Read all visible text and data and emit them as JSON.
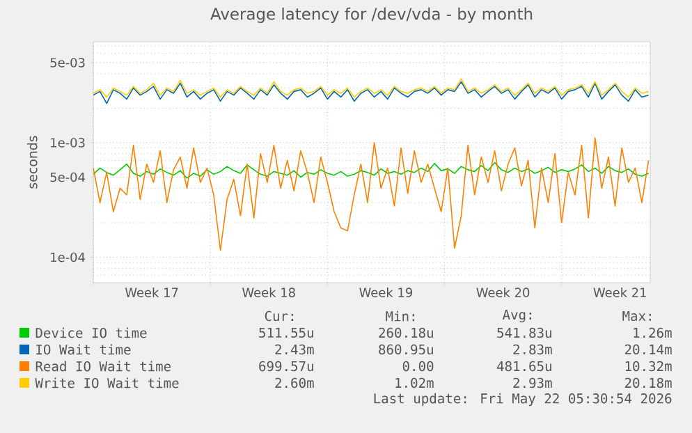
{
  "chart_data": {
    "type": "line",
    "title": "Average latency for /dev/vda - by month",
    "ylabel": "seconds",
    "log": true,
    "grid": true,
    "legend": "bottom",
    "xlim": [
      "2026-04-20T00:00",
      "2026-05-23T07:12"
    ],
    "ylim": [
      6e-05,
      0.0076
    ],
    "xticks": [
      {
        "value": "2026-04-20T00:00",
        "label": null
      },
      {
        "value": "2026-04-27T00:00",
        "label": null
      },
      {
        "value": "2026-05-04T00:00",
        "label": null
      },
      {
        "value": "2026-05-11T00:00",
        "label": null
      },
      {
        "value": "2026-05-18T00:00",
        "label": null
      },
      {
        "value": "2026-04-23T12:00",
        "label": "Week 17"
      },
      {
        "value": "2026-04-30T12:00",
        "label": "Week 18"
      },
      {
        "value": "2026-05-07T12:00",
        "label": "Week 19"
      },
      {
        "value": "2026-05-14T12:00",
        "label": "Week 20"
      },
      {
        "value": "2026-05-21T12:00",
        "label": "Week 21"
      }
    ],
    "yticks": [
      {
        "value": 0.005,
        "label": "5e-03"
      },
      {
        "value": 0.001,
        "label": "1e-03"
      },
      {
        "value": 0.0005,
        "label": "5e-04"
      },
      {
        "value": 0.0001,
        "label": "1e-04"
      },
      {
        "value": 7e-05,
        "label": null
      },
      {
        "value": 8e-05,
        "label": null
      },
      {
        "value": 9e-05,
        "label": null
      },
      {
        "value": 0.0002,
        "label": null
      },
      {
        "value": 0.0003,
        "label": null
      },
      {
        "value": 0.0004,
        "label": null
      },
      {
        "value": 0.0006,
        "label": null
      },
      {
        "value": 0.0007,
        "label": null
      },
      {
        "value": 0.0008,
        "label": null
      },
      {
        "value": 0.0009,
        "label": null
      },
      {
        "value": 0.002,
        "label": null
      },
      {
        "value": 0.003,
        "label": null
      },
      {
        "value": 0.004,
        "label": null
      },
      {
        "value": 0.006,
        "label": null
      },
      {
        "value": 0.007,
        "label": null
      }
    ],
    "x": [
      "2026-04-20T00:00",
      "2026-04-20T09:36",
      "2026-04-20T19:12",
      "2026-04-21T04:48",
      "2026-04-21T14:24",
      "2026-04-22T00:00",
      "2026-04-22T09:36",
      "2026-04-22T19:12",
      "2026-04-23T04:48",
      "2026-04-23T14:24",
      "2026-04-24T00:00",
      "2026-04-24T09:36",
      "2026-04-24T19:12",
      "2026-04-25T04:48",
      "2026-04-25T14:24",
      "2026-04-26T00:00",
      "2026-04-26T09:36",
      "2026-04-26T19:12",
      "2026-04-27T04:48",
      "2026-04-27T14:24",
      "2026-04-28T00:00",
      "2026-04-28T09:36",
      "2026-04-28T19:12",
      "2026-04-29T04:48",
      "2026-04-29T14:24",
      "2026-04-30T00:00",
      "2026-04-30T09:36",
      "2026-04-30T19:12",
      "2026-05-01T04:48",
      "2026-05-01T14:24",
      "2026-05-02T00:00",
      "2026-05-02T09:36",
      "2026-05-02T19:12",
      "2026-05-03T04:48",
      "2026-05-03T14:24",
      "2026-05-04T00:00",
      "2026-05-04T09:36",
      "2026-05-04T19:12",
      "2026-05-05T04:48",
      "2026-05-05T14:24",
      "2026-05-06T00:00",
      "2026-05-06T09:36",
      "2026-05-06T19:12",
      "2026-05-07T04:48",
      "2026-05-07T14:24",
      "2026-05-08T00:00",
      "2026-05-08T09:36",
      "2026-05-08T19:12",
      "2026-05-09T04:48",
      "2026-05-09T14:24",
      "2026-05-10T00:00",
      "2026-05-10T09:36",
      "2026-05-10T19:12",
      "2026-05-11T04:48",
      "2026-05-11T14:24",
      "2026-05-12T00:00",
      "2026-05-12T09:36",
      "2026-05-12T19:12",
      "2026-05-13T04:48",
      "2026-05-13T14:24",
      "2026-05-14T00:00",
      "2026-05-14T09:36",
      "2026-05-14T19:12",
      "2026-05-15T04:48",
      "2026-05-15T14:24",
      "2026-05-16T00:00",
      "2026-05-16T09:36",
      "2026-05-16T19:12",
      "2026-05-17T04:48",
      "2026-05-17T14:24",
      "2026-05-18T00:00",
      "2026-05-18T09:36",
      "2026-05-18T19:12",
      "2026-05-19T04:48",
      "2026-05-19T14:24",
      "2026-05-20T00:00",
      "2026-05-20T09:36",
      "2026-05-20T19:12",
      "2026-05-21T04:48",
      "2026-05-21T14:24",
      "2026-05-22T00:00",
      "2026-05-22T09:36",
      "2026-05-22T19:12",
      "2026-05-23T04:48"
    ],
    "series": [
      {
        "name": "Device IO time",
        "color": "#00cc00",
        "values": [
          0.00053,
          0.0006,
          0.00055,
          0.00052,
          0.00058,
          0.00065,
          0.00054,
          0.00051,
          0.00056,
          0.00053,
          0.00059,
          0.00055,
          0.00052,
          0.00057,
          0.00049,
          0.00054,
          0.00051,
          0.00058,
          0.00053,
          0.00056,
          0.00062,
          0.00057,
          0.00054,
          0.00064,
          0.00058,
          0.00053,
          0.00051,
          0.00056,
          0.00054,
          0.00052,
          0.00057,
          0.0005,
          0.00055,
          0.00053,
          0.00058,
          0.00054,
          0.00052,
          0.00056,
          0.00051,
          0.00053,
          0.00057,
          0.00055,
          0.00052,
          0.00059,
          0.00054,
          0.00056,
          0.00053,
          0.00057,
          0.00055,
          0.0006,
          0.00056,
          0.00066,
          0.00057,
          0.00059,
          0.00054,
          0.00062,
          0.00058,
          0.00056,
          0.00063,
          0.00057,
          0.00067,
          0.00058,
          0.00055,
          0.0006,
          0.00056,
          0.00059,
          0.00054,
          0.00057,
          0.00061,
          0.00055,
          0.00058,
          0.00056,
          0.00059,
          0.00064,
          0.00056,
          0.0006,
          0.00054,
          0.00062,
          0.00057,
          0.00055,
          0.00059,
          0.00053,
          0.00051,
          0.00054
        ]
      },
      {
        "name": "IO Wait time",
        "color": "#0066b3",
        "values": [
          0.0026,
          0.0028,
          0.0022,
          0.0029,
          0.0027,
          0.0024,
          0.003,
          0.0026,
          0.0028,
          0.0031,
          0.0024,
          0.0029,
          0.0027,
          0.0033,
          0.0025,
          0.0028,
          0.0024,
          0.0027,
          0.0029,
          0.0023,
          0.0028,
          0.0026,
          0.003,
          0.0027,
          0.0024,
          0.0029,
          0.0026,
          0.0032,
          0.0027,
          0.0024,
          0.0028,
          0.0029,
          0.0025,
          0.0027,
          0.003,
          0.0024,
          0.0028,
          0.0025,
          0.0029,
          0.0023,
          0.0027,
          0.0029,
          0.0025,
          0.0028,
          0.0024,
          0.003,
          0.0027,
          0.0025,
          0.0028,
          0.0029,
          0.0027,
          0.003,
          0.0026,
          0.0029,
          0.0028,
          0.0034,
          0.0027,
          0.0029,
          0.0025,
          0.0028,
          0.0031,
          0.0027,
          0.0029,
          0.0024,
          0.0028,
          0.0032,
          0.0025,
          0.0029,
          0.0027,
          0.003,
          0.0024,
          0.0028,
          0.0029,
          0.0031,
          0.0025,
          0.0033,
          0.0024,
          0.0028,
          0.0032,
          0.0026,
          0.0023,
          0.0029,
          0.0025,
          0.0026
        ]
      },
      {
        "name": "Read IO Wait time",
        "color": "#ff8000",
        "values": [
          0.0006,
          0.0003,
          0.00055,
          0.00025,
          0.0004,
          0.00035,
          0.00095,
          0.00032,
          0.00065,
          0.00045,
          0.00085,
          0.0003,
          0.00058,
          0.00075,
          0.0004,
          0.0009,
          0.00045,
          0.0006,
          0.00035,
          0.000115,
          0.00032,
          0.00048,
          0.00023,
          0.00065,
          0.00022,
          0.0008,
          0.00045,
          0.00095,
          0.0004,
          0.0007,
          0.00038,
          0.00085,
          0.00055,
          0.0003,
          0.00075,
          0.00045,
          0.00025,
          0.00018,
          0.00017,
          0.00035,
          0.00065,
          0.0003,
          0.001,
          0.0004,
          0.0006,
          0.00028,
          0.0009,
          0.00036,
          0.00085,
          0.00045,
          0.00065,
          0.0004,
          0.00025,
          0.0006,
          0.00012,
          0.00023,
          0.00095,
          0.00035,
          0.00075,
          0.00045,
          0.00085,
          0.00038,
          0.00065,
          0.0009,
          0.00042,
          0.0007,
          0.00018,
          0.0006,
          0.0003,
          0.0008,
          0.0002,
          0.00055,
          0.00035,
          0.00095,
          0.00022,
          0.0011,
          0.0004,
          0.00075,
          0.00028,
          0.0009,
          0.00045,
          0.0006,
          0.0003,
          0.0007
        ]
      },
      {
        "name": "Write IO Wait time",
        "color": "#ffcc00",
        "values": [
          0.0027,
          0.0029,
          0.0025,
          0.003,
          0.0028,
          0.0026,
          0.0031,
          0.0027,
          0.0029,
          0.0033,
          0.0026,
          0.003,
          0.0028,
          0.0035,
          0.0027,
          0.0029,
          0.0026,
          0.0028,
          0.003,
          0.0025,
          0.0029,
          0.0027,
          0.0031,
          0.0028,
          0.0026,
          0.003,
          0.0027,
          0.0034,
          0.0028,
          0.0026,
          0.0029,
          0.003,
          0.0027,
          0.0028,
          0.0031,
          0.0026,
          0.0029,
          0.0027,
          0.003,
          0.0025,
          0.0028,
          0.003,
          0.0027,
          0.0029,
          0.0026,
          0.0031,
          0.0028,
          0.0027,
          0.0029,
          0.003,
          0.0028,
          0.0031,
          0.0027,
          0.003,
          0.0029,
          0.0036,
          0.0028,
          0.003,
          0.0027,
          0.0029,
          0.0032,
          0.0028,
          0.003,
          0.0026,
          0.0029,
          0.0033,
          0.0027,
          0.003,
          0.0028,
          0.0031,
          0.0026,
          0.0029,
          0.003,
          0.0032,
          0.0027,
          0.0034,
          0.0026,
          0.0029,
          0.0033,
          0.0028,
          0.0025,
          0.003,
          0.0027,
          0.0028
        ]
      }
    ],
    "annotations": [
      "Cur:",
      "Min:",
      "Avg:",
      "Max:",
      "511.55u",
      "260.18u",
      "541.83u",
      "1.26m",
      "2.43m",
      "860.95u",
      "2.83m",
      "20.14m",
      "699.57u",
      "0.00",
      "481.65u",
      "10.32m",
      "2.60m",
      "1.02m",
      "2.93m",
      "20.18m",
      "Last update: Fri May 22 05:30:54 2026"
    ]
  }
}
